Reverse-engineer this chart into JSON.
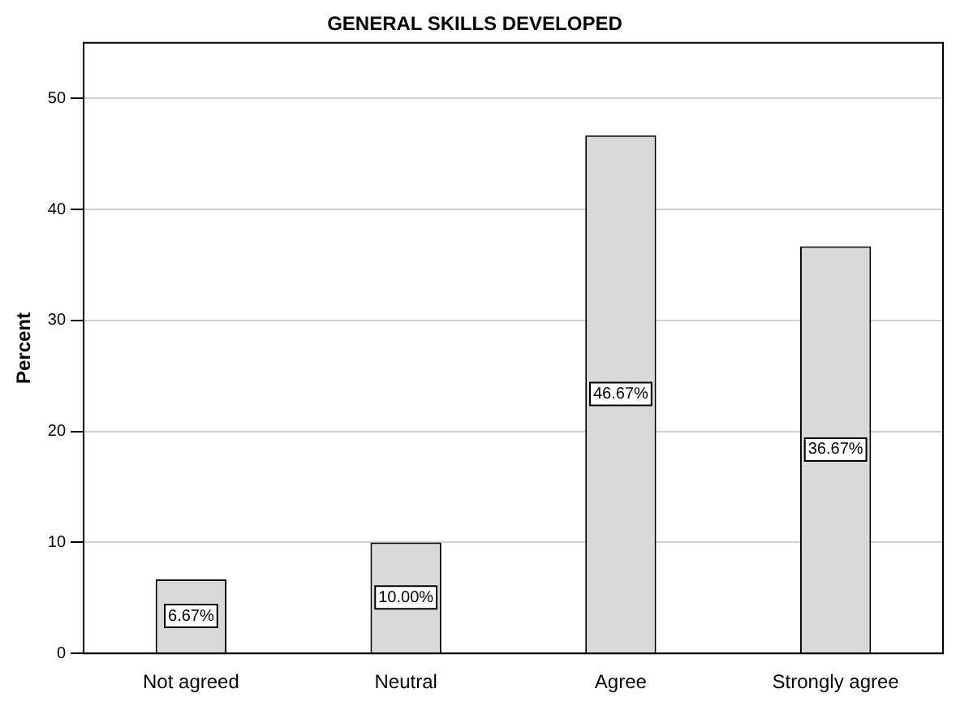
{
  "chart_data": {
    "type": "bar",
    "title": "GENERAL SKILLS DEVELOPED",
    "ylabel": "Percent",
    "categories": [
      "Not agreed",
      "Neutral",
      "Agree",
      "Strongly agree"
    ],
    "values": [
      6.67,
      10.0,
      46.67,
      36.67
    ],
    "value_labels": [
      "6.67%",
      "10.00%",
      "46.67%",
      "36.67%"
    ],
    "color": "#d9d9d9",
    "ylim": [
      0,
      55
    ],
    "yticks": [
      0,
      10,
      20,
      30,
      40,
      50
    ],
    "grid": "y"
  }
}
